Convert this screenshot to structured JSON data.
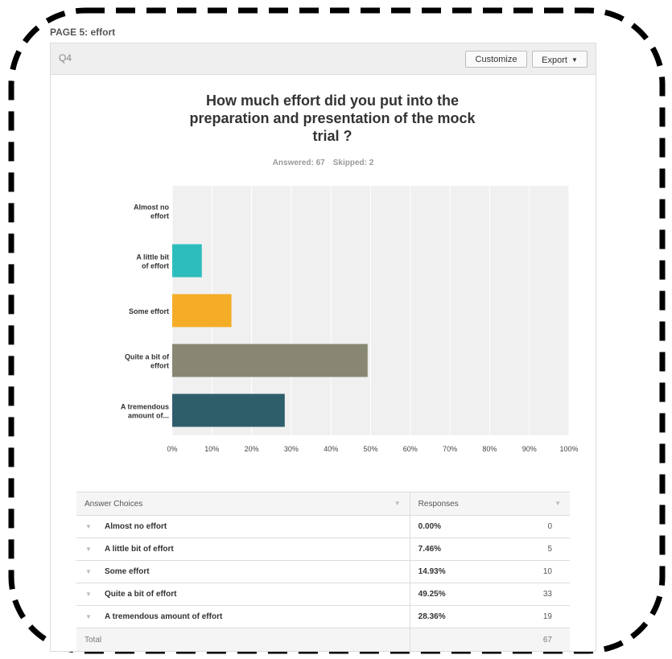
{
  "page": {
    "label": "PAGE 5: effort"
  },
  "question": {
    "id": "Q4",
    "title_lines": [
      "How much effort did you put into the",
      "preparation and presentation of the mock",
      "trial ?"
    ],
    "answered_label": "Answered: 67",
    "skipped_label": "Skipped: 2"
  },
  "toolbar": {
    "customize_label": "Customize",
    "export_label": "Export"
  },
  "chart_data": {
    "type": "bar",
    "orientation": "horizontal",
    "categories": [
      [
        "Almost no",
        "effort"
      ],
      [
        "A little bit",
        "of effort"
      ],
      [
        "Some effort"
      ],
      [
        "Quite a bit of",
        "effort"
      ],
      [
        "A tremendous",
        "amount of..."
      ]
    ],
    "values": [
      0,
      7.46,
      14.93,
      49.25,
      28.36
    ],
    "colors": [
      "#3c8dbc",
      "#2ebdbd",
      "#f5ad27",
      "#878774",
      "#2f5e6b"
    ],
    "x_ticks": [
      "0%",
      "10%",
      "20%",
      "30%",
      "40%",
      "50%",
      "60%",
      "70%",
      "80%",
      "90%",
      "100%"
    ],
    "xlim": [
      0,
      100
    ],
    "grid": true
  },
  "table": {
    "headers": {
      "choices": "Answer Choices",
      "responses": "Responses"
    },
    "rows": [
      {
        "choice": "Almost no effort",
        "percent": "0.00%",
        "count": "0"
      },
      {
        "choice": "A little bit of effort",
        "percent": "7.46%",
        "count": "5"
      },
      {
        "choice": "Some effort",
        "percent": "14.93%",
        "count": "10"
      },
      {
        "choice": "Quite a bit of effort",
        "percent": "49.25%",
        "count": "33"
      },
      {
        "choice": "A tremendous amount of effort",
        "percent": "28.36%",
        "count": "19"
      }
    ],
    "total_label": "Total",
    "total_count": "67"
  }
}
